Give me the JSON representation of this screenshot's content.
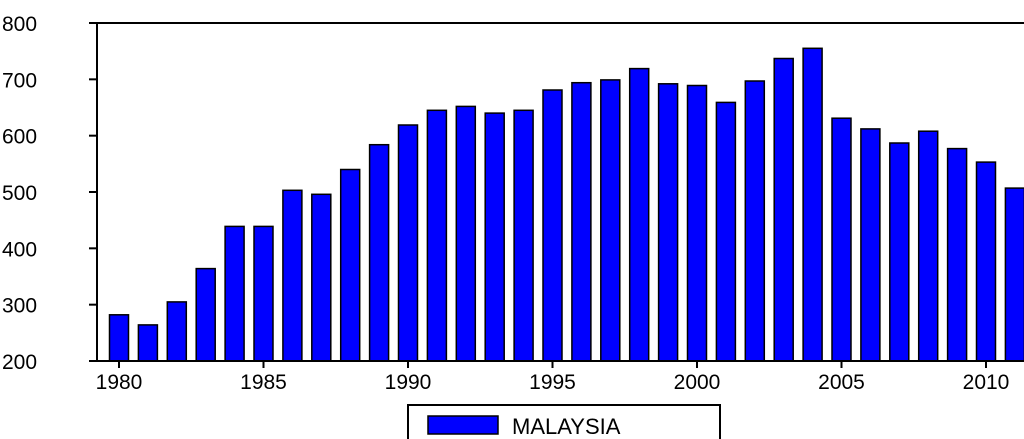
{
  "chart_data": {
    "type": "bar",
    "title": "",
    "xlabel": "",
    "ylabel": "",
    "x": [
      1980,
      1981,
      1982,
      1983,
      1984,
      1985,
      1986,
      1987,
      1988,
      1989,
      1990,
      1991,
      1992,
      1993,
      1994,
      1995,
      1996,
      1997,
      1998,
      1999,
      2000,
      2001,
      2002,
      2003,
      2004,
      2005,
      2006,
      2007,
      2008,
      2009,
      2010,
      2011
    ],
    "series": [
      {
        "name": "MALAYSIA",
        "color": "#0000ff",
        "values": [
          282,
          264,
          305,
          364,
          439,
          439,
          503,
          496,
          540,
          584,
          619,
          645,
          652,
          640,
          645,
          681,
          694,
          699,
          719,
          692,
          689,
          659,
          697,
          737,
          755,
          631,
          612,
          587,
          608,
          577,
          553,
          507
        ]
      }
    ],
    "ylim": [
      200,
      800
    ],
    "yticks": [
      200,
      300,
      400,
      500,
      600,
      700,
      800
    ],
    "xticks": [
      1980,
      1985,
      1990,
      1995,
      2000,
      2005,
      2010
    ],
    "xtick_labels": [
      "1980",
      "1985",
      "1990",
      "1995",
      "2000",
      "2005",
      "2010"
    ],
    "grid": false,
    "legend": {
      "placement": "bottom-center",
      "entries": [
        "MALAYSIA"
      ]
    }
  }
}
